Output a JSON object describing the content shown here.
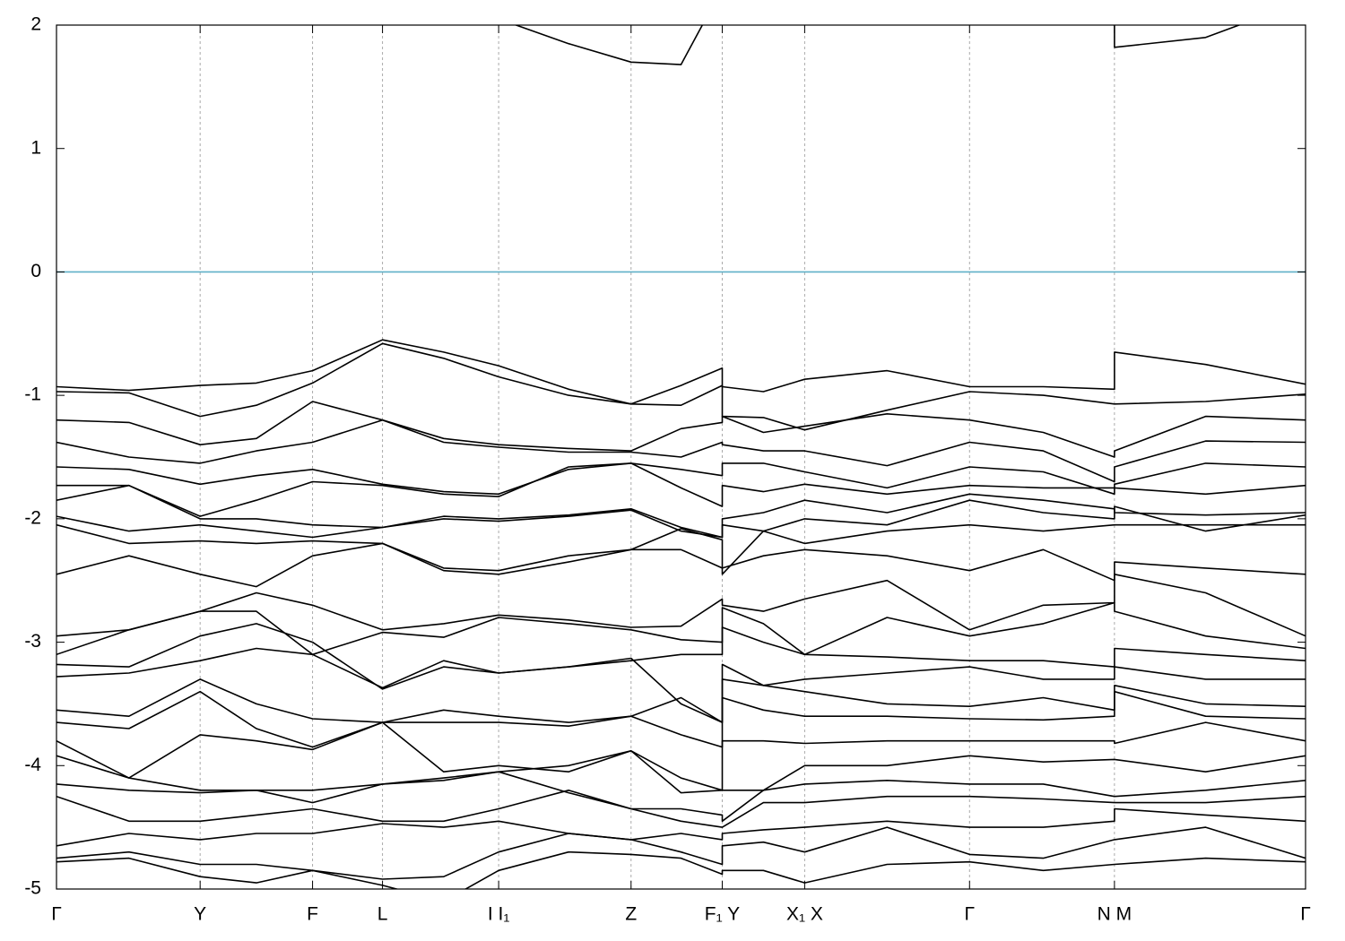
{
  "chart_data": {
    "type": "line",
    "x": [
      0,
      0.058,
      0.115,
      0.16,
      0.205,
      0.261,
      0.31,
      0.354,
      0.41,
      0.46,
      0.5,
      0.533,
      0.533,
      0.566,
      0.599,
      0.665,
      0.731,
      0.79,
      0.847,
      0.847,
      0.92,
      1.0
    ],
    "xlim": [
      0,
      1
    ],
    "xticks": [
      {
        "value": 0,
        "label": "Γ"
      },
      {
        "value": 0.115,
        "label": "Y"
      },
      {
        "value": 0.205,
        "label": "F"
      },
      {
        "value": 0.261,
        "label": "L"
      },
      {
        "value": 0.354,
        "label": "I I₁"
      },
      {
        "value": 0.46,
        "label": "Z"
      },
      {
        "value": 0.533,
        "label": "F₁ Y"
      },
      {
        "value": 0.599,
        "label": "X₁ X"
      },
      {
        "value": 0.731,
        "label": "Γ"
      },
      {
        "value": 0.847,
        "label": "N M"
      },
      {
        "value": 1,
        "label": "Γ"
      }
    ],
    "ylim": [
      -5,
      2
    ],
    "yticks": [
      -5,
      -4,
      -3,
      -2,
      -1,
      0,
      1,
      2
    ],
    "xgrid": true,
    "color": "#000000",
    "fermi_level": 0,
    "fermi_color": "#5fb0c8",
    "series": [
      {
        "values": [
          null,
          null,
          null,
          null,
          null,
          null,
          null,
          2.05,
          1.85,
          1.7,
          1.68,
          2.3,
          null,
          null,
          null,
          null,
          null,
          2.1,
          2.0,
          1.82,
          1.9,
          2.2
        ]
      },
      {
        "values": [
          -0.93,
          -0.96,
          -0.92,
          -0.9,
          -0.8,
          -0.55,
          -0.65,
          -0.76,
          -0.95,
          -1.07,
          -0.92,
          -0.78,
          -0.93,
          -0.97,
          -0.87,
          -0.8,
          -0.93,
          -0.93,
          -0.95,
          -0.65,
          -0.75,
          -0.91
        ]
      },
      {
        "values": [
          -0.97,
          -0.98,
          -1.17,
          -1.08,
          -0.9,
          -0.58,
          -0.7,
          -0.85,
          -1.0,
          -1.07,
          -1.08,
          -0.92,
          -1.17,
          -1.18,
          -1.28,
          -1.12,
          -0.97,
          -1.0,
          -1.07,
          -1.07,
          -1.05,
          -0.99
        ]
      },
      {
        "values": [
          -1.2,
          -1.22,
          -1.4,
          -1.35,
          -1.05,
          -1.2,
          -1.35,
          -1.4,
          -1.43,
          -1.45,
          -1.27,
          -1.22,
          -1.17,
          -1.3,
          -1.25,
          -1.15,
          -1.2,
          -1.3,
          -1.5,
          -1.45,
          -1.17,
          -1.2
        ]
      },
      {
        "values": [
          -1.38,
          -1.5,
          -1.55,
          -1.45,
          -1.38,
          -1.2,
          -1.38,
          -1.42,
          -1.46,
          -1.46,
          -1.5,
          -1.38,
          -1.4,
          -1.45,
          -1.45,
          -1.57,
          -1.38,
          -1.45,
          -1.7,
          -1.58,
          -1.37,
          -1.38
        ]
      },
      {
        "values": [
          -1.58,
          -1.6,
          -1.72,
          -1.65,
          -1.6,
          -1.72,
          -1.78,
          -1.8,
          -1.6,
          -1.55,
          -1.6,
          -1.65,
          -1.55,
          -1.55,
          -1.62,
          -1.75,
          -1.58,
          -1.62,
          -1.8,
          -1.72,
          -1.55,
          -1.58
        ]
      },
      {
        "values": [
          -1.73,
          -1.73,
          -1.98,
          -1.85,
          -1.7,
          -1.73,
          -1.8,
          -1.82,
          -1.58,
          -1.55,
          -1.75,
          -1.9,
          -1.73,
          -1.78,
          -1.72,
          -1.8,
          -1.73,
          -1.75,
          -1.75,
          -1.75,
          -1.8,
          -1.73
        ]
      },
      {
        "values": [
          -1.85,
          -1.73,
          -2.0,
          -2.0,
          -2.05,
          -2.07,
          -1.98,
          -2.0,
          -1.97,
          -1.92,
          -2.07,
          -2.15,
          -2.0,
          -1.95,
          -1.85,
          -1.95,
          -1.8,
          -1.85,
          -1.92,
          -1.95,
          -1.97,
          -1.95
        ]
      },
      {
        "values": [
          -1.98,
          -2.1,
          -2.05,
          -2.1,
          -2.15,
          -2.07,
          -2.0,
          -2.02,
          -1.98,
          -1.93,
          -2.1,
          -2.15,
          -2.05,
          -2.1,
          -2.0,
          -2.05,
          -1.85,
          -1.95,
          -2.0,
          -1.9,
          -2.1,
          -1.97
        ]
      },
      {
        "values": [
          -2.05,
          -2.2,
          -2.18,
          -2.2,
          -2.18,
          -2.2,
          -2.4,
          -2.42,
          -2.3,
          -2.25,
          -2.08,
          -2.17,
          -2.45,
          -2.1,
          -2.2,
          -2.1,
          -2.05,
          -2.1,
          -2.05,
          -2.05,
          -2.05,
          -2.05
        ]
      },
      {
        "values": [
          -2.45,
          -2.3,
          -2.45,
          -2.55,
          -2.3,
          -2.2,
          -2.42,
          -2.45,
          -2.35,
          -2.25,
          -2.25,
          -2.4,
          -2.4,
          -2.3,
          -2.25,
          -2.3,
          -2.42,
          -2.25,
          -2.5,
          -2.35,
          -2.4,
          -2.45
        ]
      },
      {
        "values": [
          -2.95,
          -2.9,
          -2.75,
          -2.6,
          -2.7,
          -2.9,
          -2.85,
          -2.78,
          -2.82,
          -2.88,
          -2.87,
          -2.65,
          -2.7,
          -2.75,
          -2.65,
          -2.5,
          -2.9,
          -2.7,
          -2.68,
          -2.45,
          -2.6,
          -2.95
        ]
      },
      {
        "values": [
          -3.1,
          -2.9,
          -2.75,
          -2.75,
          -3.1,
          -2.92,
          -2.96,
          -2.8,
          -2.85,
          -2.9,
          -2.98,
          -3.0,
          -2.72,
          -2.85,
          -3.1,
          -2.8,
          -2.95,
          -2.85,
          -2.68,
          -2.75,
          -2.95,
          -3.05
        ]
      },
      {
        "values": [
          -3.18,
          -3.2,
          -2.95,
          -2.85,
          -3.0,
          -3.38,
          -3.2,
          -3.25,
          -3.2,
          -3.15,
          -3.1,
          -3.1,
          -2.88,
          -3.0,
          -3.1,
          -3.12,
          -3.15,
          -3.15,
          -3.2,
          -3.05,
          -3.1,
          -3.15
        ]
      },
      {
        "values": [
          -3.28,
          -3.25,
          -3.15,
          -3.05,
          -3.1,
          -3.37,
          -3.15,
          -3.25,
          -3.2,
          -3.13,
          -3.5,
          -3.65,
          -3.18,
          -3.35,
          -3.3,
          -3.25,
          -3.2,
          -3.3,
          -3.3,
          -3.2,
          -3.3,
          -3.3
        ]
      },
      {
        "values": [
          -3.55,
          -3.6,
          -3.3,
          -3.5,
          -3.62,
          -3.65,
          -3.55,
          -3.6,
          -3.65,
          -3.6,
          -3.45,
          -3.65,
          -3.3,
          -3.35,
          -3.4,
          -3.5,
          -3.52,
          -3.45,
          -3.55,
          -3.35,
          -3.5,
          -3.52
        ]
      },
      {
        "values": [
          -3.65,
          -3.7,
          -3.4,
          -3.7,
          -3.85,
          -3.65,
          -3.65,
          -3.65,
          -3.68,
          -3.6,
          -3.75,
          -3.85,
          -3.45,
          -3.55,
          -3.6,
          -3.6,
          -3.62,
          -3.63,
          -3.6,
          -3.4,
          -3.6,
          -3.62
        ]
      },
      {
        "values": [
          -3.8,
          -4.1,
          -3.75,
          -3.8,
          -3.87,
          -3.65,
          -4.05,
          -4.0,
          -4.05,
          -3.88,
          -4.1,
          -4.2,
          -3.8,
          -3.8,
          -3.82,
          -3.8,
          -3.8,
          -3.8,
          -3.8,
          -3.82,
          -3.65,
          -3.8
        ]
      },
      {
        "values": [
          -3.92,
          -4.1,
          -4.2,
          -4.2,
          -4.2,
          -4.15,
          -4.1,
          -4.05,
          -4.0,
          -3.88,
          -4.22,
          -4.2,
          -4.2,
          -4.2,
          -4.0,
          -4.0,
          -3.92,
          -3.97,
          -3.95,
          -3.95,
          -4.05,
          -3.92
        ]
      },
      {
        "values": [
          -4.15,
          -4.2,
          -4.22,
          -4.2,
          -4.3,
          -4.15,
          -4.12,
          -4.05,
          -4.22,
          -4.35,
          -4.35,
          -4.4,
          -4.45,
          -4.2,
          -4.15,
          -4.12,
          -4.15,
          -4.15,
          -4.25,
          -4.25,
          -4.2,
          -4.12
        ]
      },
      {
        "values": [
          -4.25,
          -4.45,
          -4.45,
          -4.4,
          -4.35,
          -4.45,
          -4.45,
          -4.35,
          -4.2,
          -4.35,
          -4.45,
          -4.5,
          -4.5,
          -4.3,
          -4.3,
          -4.25,
          -4.25,
          -4.27,
          -4.3,
          -4.3,
          -4.3,
          -4.25
        ]
      },
      {
        "values": [
          -4.65,
          -4.55,
          -4.6,
          -4.55,
          -4.55,
          -4.47,
          -4.5,
          -4.45,
          -4.55,
          -4.6,
          -4.55,
          -4.6,
          -4.55,
          -4.52,
          -4.5,
          -4.45,
          -4.5,
          -4.5,
          -4.45,
          -4.35,
          -4.4,
          -4.45
        ]
      },
      {
        "values": [
          -4.75,
          -4.7,
          -4.8,
          -4.8,
          -4.85,
          -4.92,
          -4.9,
          -4.7,
          -4.55,
          -4.6,
          -4.7,
          -4.8,
          -4.65,
          -4.62,
          -4.7,
          -4.5,
          -4.72,
          -4.75,
          -4.6,
          -4.6,
          -4.5,
          -4.75
        ]
      },
      {
        "values": [
          -4.78,
          -4.75,
          -4.9,
          -4.95,
          -4.85,
          -4.97,
          -5.1,
          -4.85,
          -4.7,
          -4.72,
          -4.75,
          -4.88,
          -4.85,
          -4.85,
          -4.95,
          -4.8,
          -4.78,
          -4.85,
          -4.8,
          -4.8,
          -4.75,
          -4.78
        ]
      }
    ]
  }
}
